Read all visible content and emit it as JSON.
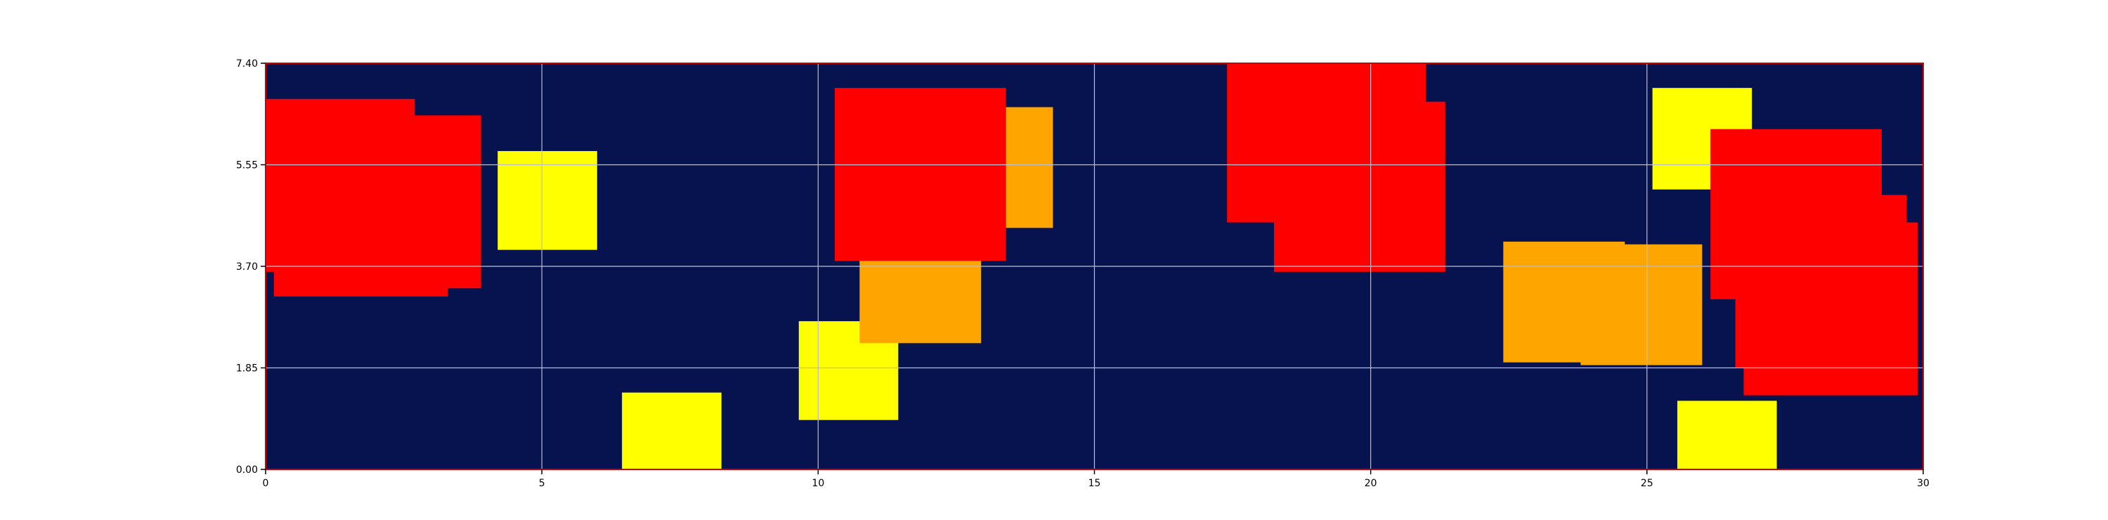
{
  "chart_data": {
    "type": "scatter",
    "title": "",
    "xlabel": "",
    "ylabel": "",
    "xlim": [
      0,
      30
    ],
    "ylim": [
      0,
      7.4
    ],
    "grid": true,
    "x_ticks": [
      "0",
      "5",
      "10",
      "15",
      "20",
      "25",
      "30"
    ],
    "y_ticks": [
      "0.00",
      "1.85",
      "3.70",
      "5.55",
      "7.40"
    ],
    "x_tick_values": [
      0,
      5,
      10,
      15,
      20,
      25,
      30
    ],
    "y_tick_values": [
      0,
      1.85,
      3.7,
      5.55,
      7.4
    ],
    "background_color": "#06134f",
    "border_color": "#cc0000",
    "grid_color": "#b8bdd0",
    "colors": {
      "red": "#ff0000",
      "orange": "#ffa500",
      "yellow": "#ffff00"
    },
    "squares": [
      {
        "x0": 0.0,
        "x1": 2.7,
        "y0": 3.6,
        "y1": 6.75,
        "color": "red"
      },
      {
        "x0": 0.15,
        "x1": 3.3,
        "y0": 3.15,
        "y1": 6.3,
        "color": "red"
      },
      {
        "x0": 0.7,
        "x1": 3.9,
        "y0": 3.3,
        "y1": 6.45,
        "color": "red"
      },
      {
        "x0": 4.2,
        "x1": 6.0,
        "y0": 4.0,
        "y1": 5.8,
        "color": "yellow"
      },
      {
        "x0": 6.45,
        "x1": 8.25,
        "y0": 0.0,
        "y1": 1.4,
        "color": "yellow"
      },
      {
        "x0": 9.65,
        "x1": 11.45,
        "y0": 0.9,
        "y1": 2.7,
        "color": "yellow"
      },
      {
        "x0": 10.75,
        "x1": 12.95,
        "y0": 2.3,
        "y1": 4.5,
        "color": "orange"
      },
      {
        "x0": 12.05,
        "x1": 14.25,
        "y0": 4.4,
        "y1": 6.6,
        "color": "orange"
      },
      {
        "x0": 10.3,
        "x1": 13.4,
        "y0": 3.8,
        "y1": 6.95,
        "color": "red"
      },
      {
        "x0": 17.4,
        "x1": 21.0,
        "y0": 4.5,
        "y1": 7.4,
        "color": "red"
      },
      {
        "x0": 18.25,
        "x1": 21.35,
        "y0": 3.6,
        "y1": 6.7,
        "color": "red"
      },
      {
        "x0": 22.4,
        "x1": 24.6,
        "y0": 1.95,
        "y1": 4.15,
        "color": "orange"
      },
      {
        "x0": 23.8,
        "x1": 26.0,
        "y0": 1.9,
        "y1": 4.1,
        "color": "orange"
      },
      {
        "x0": 25.1,
        "x1": 26.9,
        "y0": 5.1,
        "y1": 6.95,
        "color": "yellow"
      },
      {
        "x0": 26.15,
        "x1": 29.25,
        "y0": 3.1,
        "y1": 6.2,
        "color": "red"
      },
      {
        "x0": 26.6,
        "x1": 29.7,
        "y0": 1.85,
        "y1": 5.0,
        "color": "red"
      },
      {
        "x0": 26.75,
        "x1": 29.9,
        "y0": 1.35,
        "y1": 4.5,
        "color": "red"
      },
      {
        "x0": 25.55,
        "x1": 27.35,
        "y0": 0.0,
        "y1": 1.25,
        "color": "yellow"
      }
    ]
  }
}
